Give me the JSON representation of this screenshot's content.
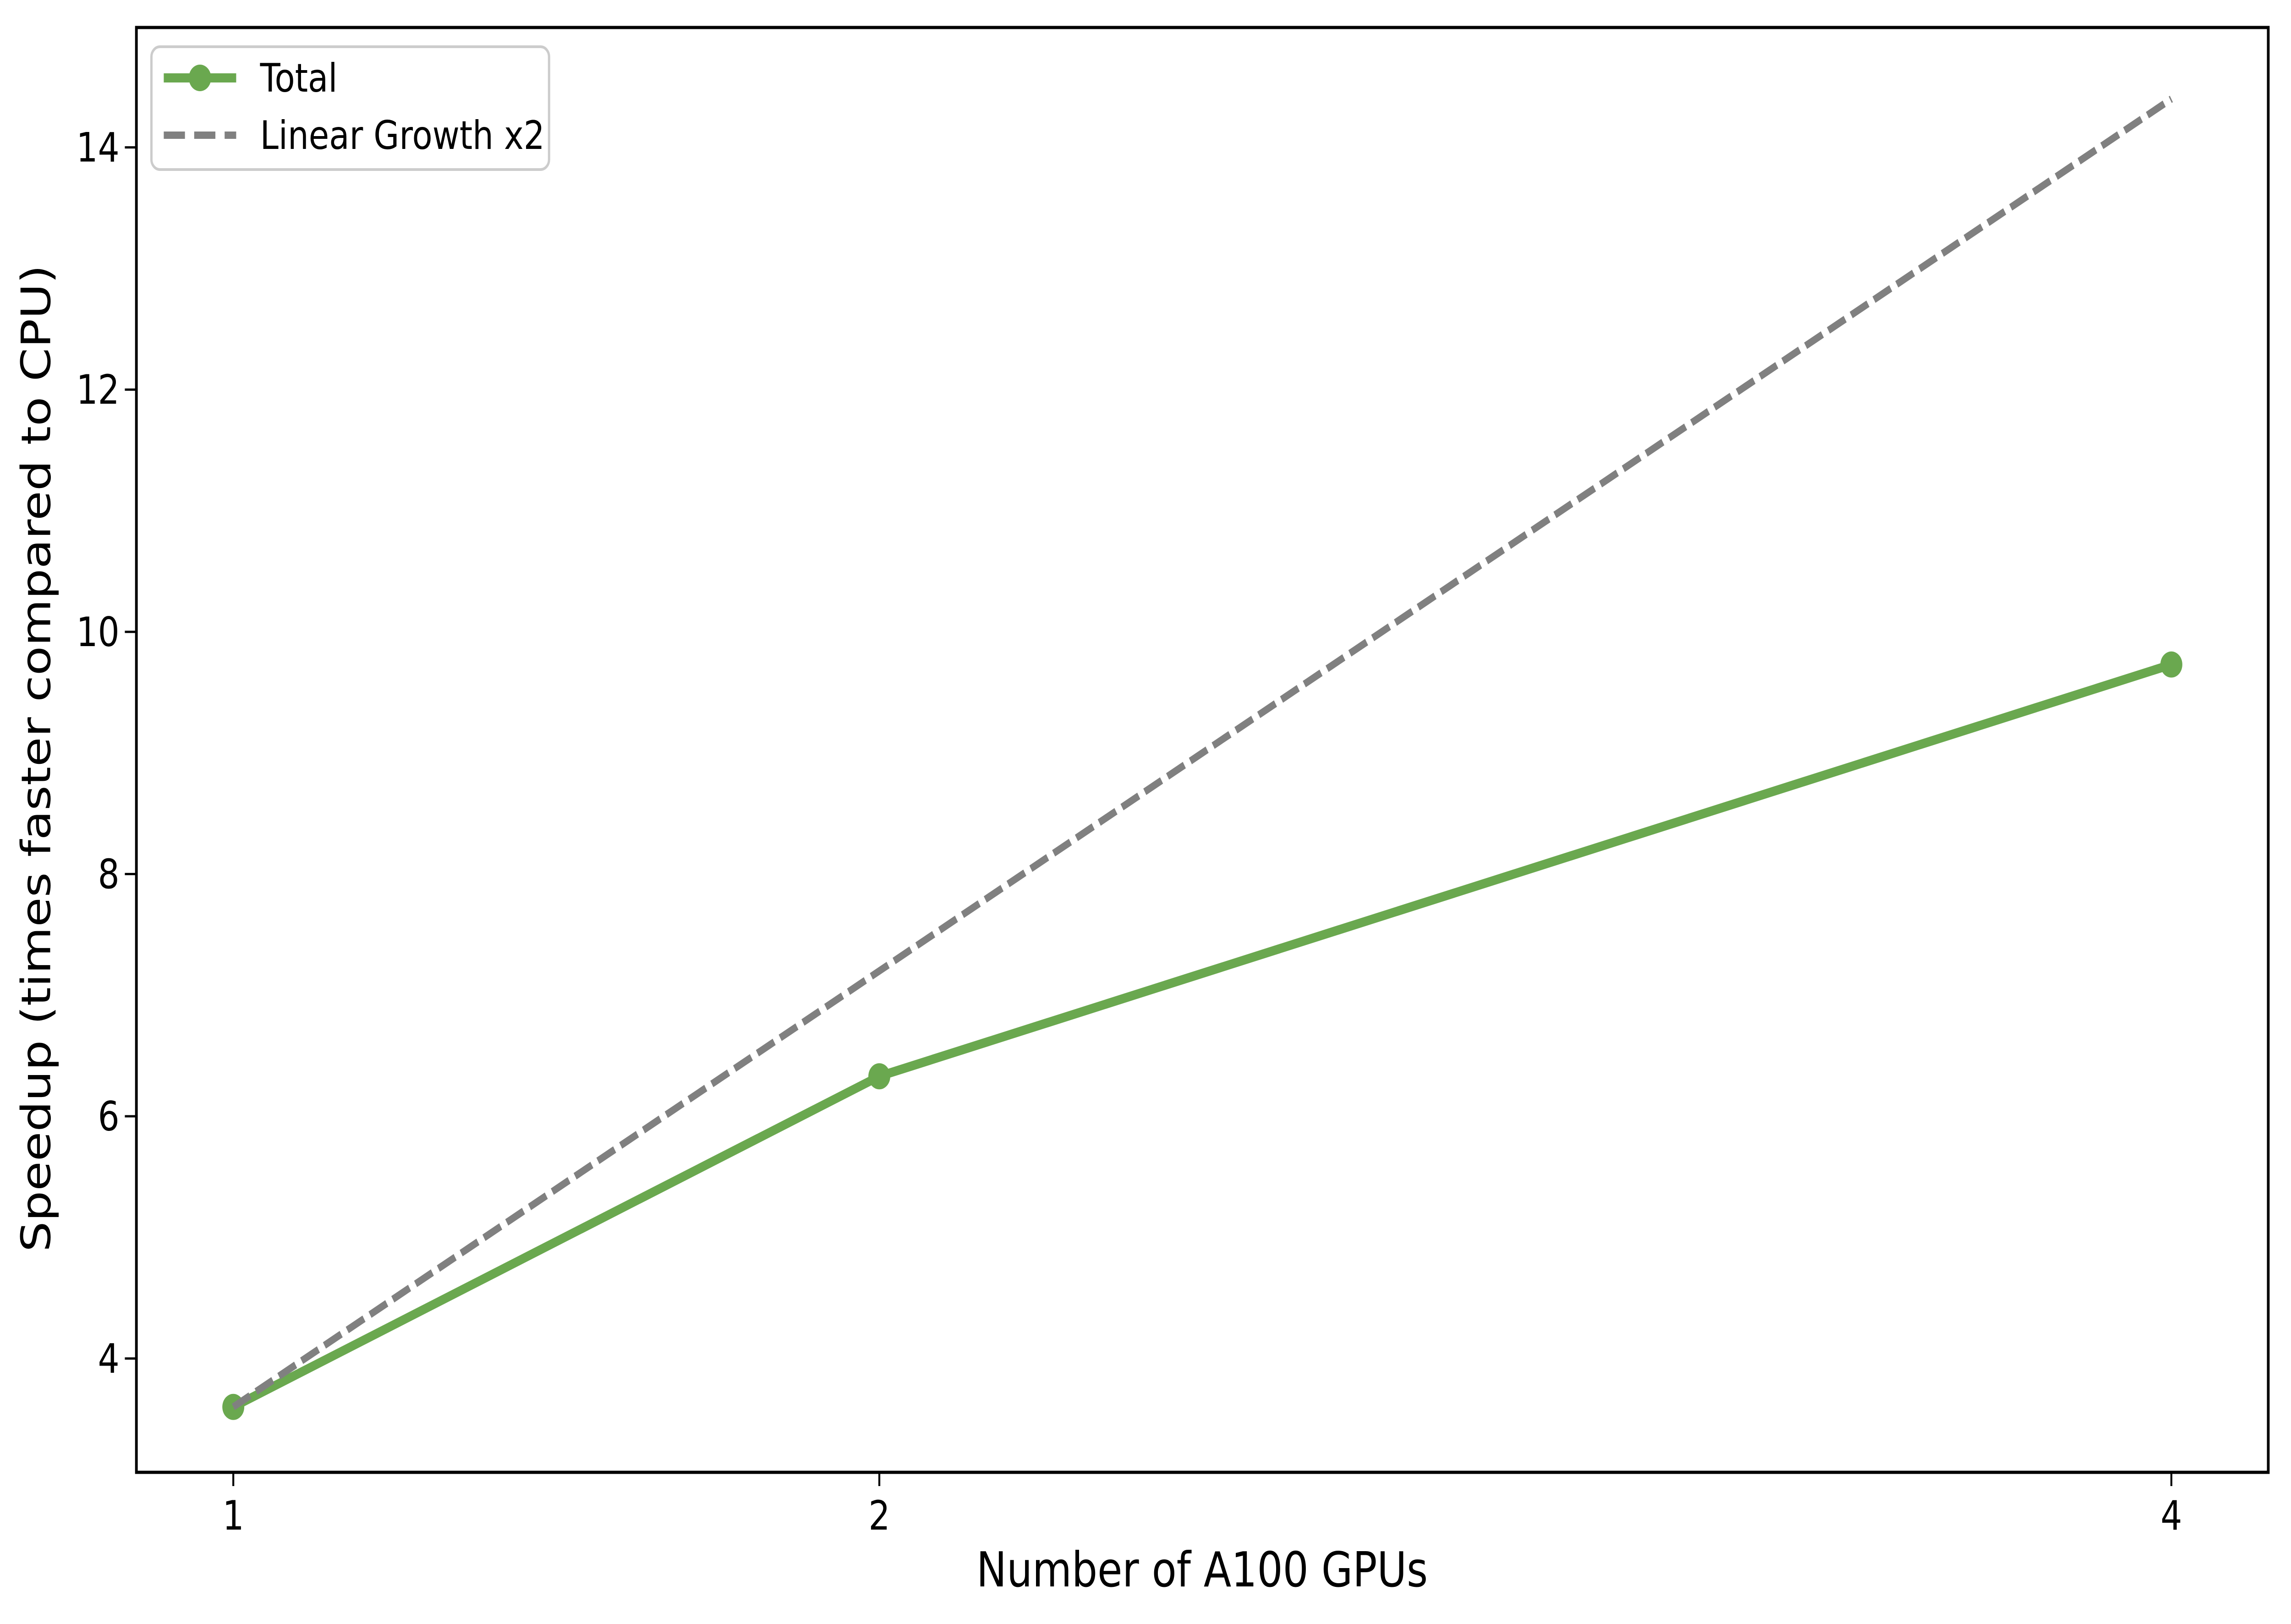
{
  "figure": {
    "background_color": "#ffffff",
    "spine_color": "#000000",
    "legend_border_color": "#cccccc",
    "legend_background_color": "#ffffff"
  },
  "chart_data": {
    "type": "line",
    "x": [
      1,
      2,
      4
    ],
    "series": [
      {
        "name": "Total",
        "values": [
          3.6,
          6.33,
          9.73
        ],
        "color": "#6aa84f",
        "linestyle": "solid",
        "marker": "circle"
      },
      {
        "name": "Linear Growth x2",
        "values": [
          3.6,
          7.2,
          14.4
        ],
        "color": "#808080",
        "linestyle": "dashed",
        "marker": "none"
      }
    ],
    "title": "",
    "xlabel": "Number of A100 GPUs",
    "ylabel": "Speedup (times faster compared to CPU)",
    "xticks": [
      1,
      2,
      4
    ],
    "yticks": [
      4,
      6,
      8,
      10,
      12,
      14
    ],
    "xlim": [
      0.85,
      4.15
    ],
    "ylim": [
      3.06,
      14.99
    ],
    "grid": false,
    "legend": {
      "position": "upper left",
      "entries": [
        "Total",
        "Linear Growth x2"
      ]
    }
  }
}
